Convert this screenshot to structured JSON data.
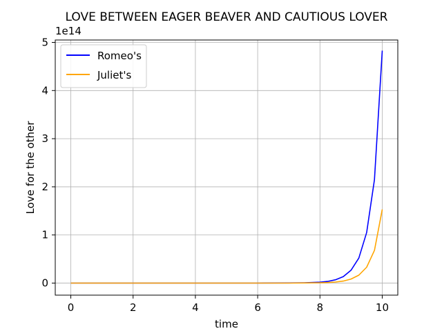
{
  "chart_data": {
    "type": "line",
    "title": "LOVE BETWEEN EAGER BEAVER AND CAUTIOUS LOVER",
    "xlabel": "time",
    "ylabel": "Love for the other",
    "y_offset_label": "1e14",
    "xlim": [
      -0.5,
      10.5
    ],
    "ylim": [
      -0.25,
      5.05
    ],
    "x_ticks": [
      0,
      2,
      4,
      6,
      8,
      10
    ],
    "x_tick_labels": [
      "0",
      "2",
      "4",
      "6",
      "8",
      "10"
    ],
    "y_ticks": [
      0,
      1,
      2,
      3,
      4,
      5
    ],
    "y_tick_labels": [
      "0",
      "1",
      "2",
      "3",
      "4",
      "5"
    ],
    "y_scale_factor": 100000000000000.0,
    "grid": true,
    "legend": "upper-left",
    "x": [
      0,
      1,
      2,
      3,
      4,
      5,
      6,
      7,
      7.5,
      8,
      8.25,
      8.5,
      8.75,
      9,
      9.25,
      9.5,
      9.75,
      10
    ],
    "series": [
      {
        "name": "Romeo's",
        "color": "#0000ff",
        "values": [
          0,
          0,
          0,
          0,
          0,
          0,
          0,
          0.003,
          0.008,
          0.02,
          0.035,
          0.07,
          0.135,
          0.27,
          0.52,
          1.05,
          2.15,
          4.83
        ]
      },
      {
        "name": "Juliet's",
        "color": "#ffa500",
        "values": [
          0,
          0,
          0,
          0,
          0,
          0,
          0,
          0.001,
          0.003,
          0.007,
          0.012,
          0.022,
          0.042,
          0.085,
          0.165,
          0.33,
          0.68,
          1.53
        ]
      }
    ]
  }
}
